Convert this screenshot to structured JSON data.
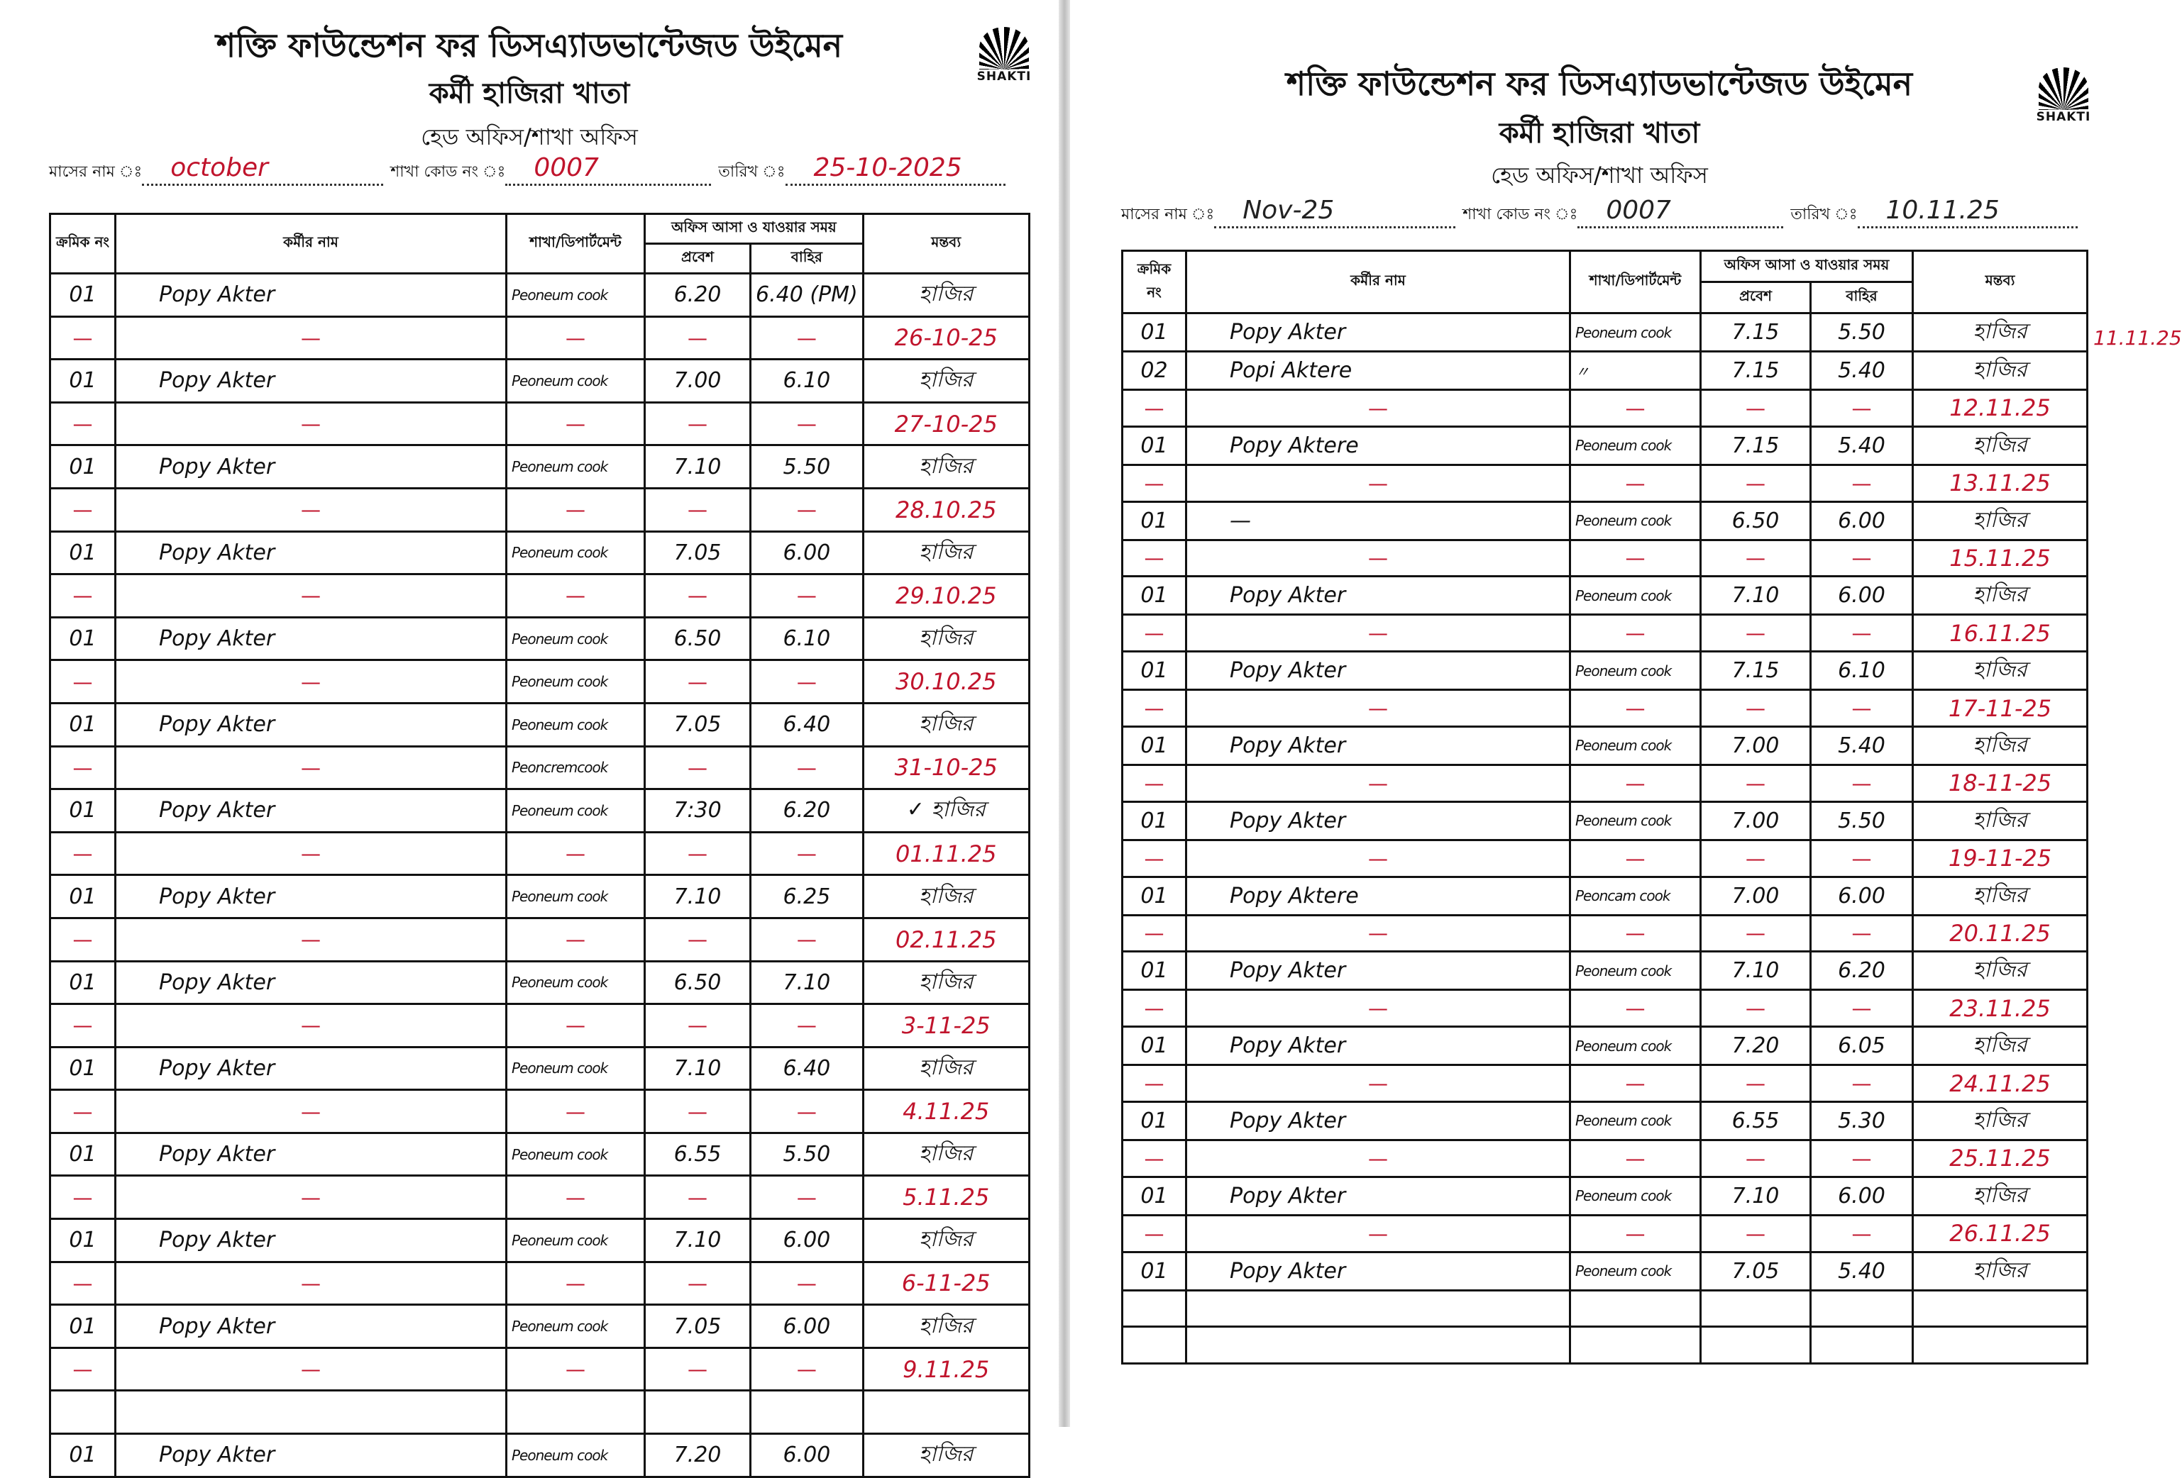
{
  "header": {
    "org_title": "শক্তি ফাউন্ডেশন ফর ডিসএ্যাডভান্টেজড উইমেন",
    "register_title": "কর্মী হাজিরা খাতা",
    "office_line": "হেড অফিস/শাখা অফিস",
    "logo_text": "SHAKTI",
    "month_label": "মাসের নাম ঃ",
    "branch_label": "শাখা কোড নং ঃ",
    "date_label": "তারিখ ঃ"
  },
  "columns": {
    "serial": "ক্রমিক নং",
    "name": "কর্মীর নাম",
    "dept": "শাখা/ডিপার্টমেন্ট",
    "time_group": "অফিস আসা ও যাওয়ার সময়",
    "entry": "প্রবেশ",
    "exit": "বাহির",
    "remarks": "মন্তব্য"
  },
  "colors": {
    "ink": "#111111",
    "red_ink": "#c0142c"
  },
  "sheets": [
    {
      "month": "october",
      "branch_code": "0007",
      "date": "25-10-2025",
      "rows": [
        {
          "type": "entry",
          "serial": "01",
          "name": "Popy Akter",
          "dept": "Peoneum cook",
          "in": "6.20",
          "out": "6.40 (PM)",
          "remark": "হাজির"
        },
        {
          "type": "dash",
          "date": "26-10-25"
        },
        {
          "type": "entry",
          "serial": "01",
          "name": "Popy Akter",
          "dept": "Peoneum cook",
          "in": "7.00",
          "out": "6.10",
          "remark": "হাজির"
        },
        {
          "type": "dash",
          "date": "27-10-25"
        },
        {
          "type": "entry",
          "serial": "01",
          "name": "Popy Akter",
          "dept": "Peoneum cook",
          "in": "7.10",
          "out": "5.50",
          "remark": "হাজির"
        },
        {
          "type": "dash",
          "date": "28.10.25"
        },
        {
          "type": "entry",
          "serial": "01",
          "name": "Popy Akter",
          "dept": "Peoneum cook",
          "in": "7.05",
          "out": "6.00",
          "remark": "হাজির"
        },
        {
          "type": "dash",
          "date": "29.10.25"
        },
        {
          "type": "entry",
          "serial": "01",
          "name": "Popy Akter",
          "dept": "Peoneum cook",
          "in": "6.50",
          "out": "6.10",
          "remark": "হাজির"
        },
        {
          "type": "dash",
          "date": "30.10.25",
          "dept": "Peoneum cook"
        },
        {
          "type": "entry",
          "serial": "01",
          "name": "Popy Akter",
          "dept": "Peoneum cook",
          "in": "7.05",
          "out": "6.40",
          "remark": "হাজির"
        },
        {
          "type": "dash",
          "date": "31-10-25",
          "dept": "Peoncremcook"
        },
        {
          "type": "entry",
          "serial": "01",
          "name": "Popy Akter",
          "dept": "Peoneum cook",
          "in": "7:30",
          "out": "6.20",
          "remark": "✓ হাজির"
        },
        {
          "type": "dash",
          "date": "01.11.25"
        },
        {
          "type": "entry",
          "serial": "01",
          "name": "Popy Akter",
          "dept": "Peoneum cook",
          "in": "7.10",
          "out": "6.25",
          "remark": "হাজির"
        },
        {
          "type": "dash",
          "date": "02.11.25"
        },
        {
          "type": "entry",
          "serial": "01",
          "name": "Popy Akter",
          "dept": "Peoneum cook",
          "in": "6.50",
          "out": "7.10",
          "remark": "হাজির"
        },
        {
          "type": "dash",
          "date": "3-11-25"
        },
        {
          "type": "entry",
          "serial": "01",
          "name": "Popy Akter",
          "dept": "Peoneum cook",
          "in": "7.10",
          "out": "6.40",
          "remark": "হাজির"
        },
        {
          "type": "dash",
          "date": "4.11.25"
        },
        {
          "type": "entry",
          "serial": "01",
          "name": "Popy Akter",
          "dept": "Peoneum cook",
          "in": "6.55",
          "out": "5.50",
          "remark": "হাজির"
        },
        {
          "type": "dash",
          "date": "5.11.25"
        },
        {
          "type": "entry",
          "serial": "01",
          "name": "Popy Akter",
          "dept": "Peoneum cook",
          "in": "7.10",
          "out": "6.00",
          "remark": "হাজির"
        },
        {
          "type": "dash",
          "date": "6-11-25"
        },
        {
          "type": "entry",
          "serial": "01",
          "name": "Popy Akter",
          "dept": "Peoneum cook",
          "in": "7.05",
          "out": "6.00",
          "remark": "হাজির"
        },
        {
          "type": "dash",
          "date": "9.11.25"
        },
        {
          "type": "empty"
        },
        {
          "type": "entry",
          "serial": "01",
          "name": "Popy Akter",
          "dept": "Peoneum cook",
          "in": "7.20",
          "out": "6.00",
          "remark": "হাজির"
        }
      ]
    },
    {
      "month": "Nov-25",
      "branch_code": "0007",
      "date": "10.11.25",
      "margin_note": "11.11.25",
      "rows": [
        {
          "type": "entry",
          "serial": "01",
          "name": "Popy Akter",
          "dept": "Peoneum cook",
          "in": "7.15",
          "out": "5.50",
          "remark": "হাজির"
        },
        {
          "type": "entry",
          "serial": "02",
          "name": "Popi Aktere",
          "dept": "〃",
          "in": "7.15",
          "out": "5.40",
          "remark": "হাজির"
        },
        {
          "type": "dash",
          "date": "12.11.25"
        },
        {
          "type": "entry",
          "serial": "01",
          "name": "Popy Aktere",
          "dept": "Peoneum cook",
          "in": "7.15",
          "out": "5.40",
          "remark": "হাজির"
        },
        {
          "type": "dash",
          "date": "13.11.25"
        },
        {
          "type": "entry",
          "serial": "01",
          "name": "—",
          "dept": "Peoneum cook",
          "in": "6.50",
          "out": "6.00",
          "remark": "হাজির"
        },
        {
          "type": "dash",
          "date": "15.11.25"
        },
        {
          "type": "entry",
          "serial": "01",
          "name": "Popy Akter",
          "dept": "Peoneum cook",
          "in": "7.10",
          "out": "6.00",
          "remark": "হাজির"
        },
        {
          "type": "dash",
          "date": "16.11.25"
        },
        {
          "type": "entry",
          "serial": "01",
          "name": "Popy Akter",
          "dept": "Peoneum cook",
          "in": "7.15",
          "out": "6.10",
          "remark": "হাজির"
        },
        {
          "type": "dash",
          "date": "17-11-25"
        },
        {
          "type": "entry",
          "serial": "01",
          "name": "Popy Akter",
          "dept": "Peoneum cook",
          "in": "7.00",
          "out": "5.40",
          "remark": "হাজির"
        },
        {
          "type": "dash",
          "date": "18-11-25"
        },
        {
          "type": "entry",
          "serial": "01",
          "name": "Popy Akter",
          "dept": "Peoneum cook",
          "in": "7.00",
          "out": "5.50",
          "remark": "হাজির"
        },
        {
          "type": "dash",
          "date": "19-11-25"
        },
        {
          "type": "entry",
          "serial": "01",
          "name": "Popy Aktere",
          "dept": "Peoncam cook",
          "in": "7.00",
          "out": "6.00",
          "remark": "হাজির"
        },
        {
          "type": "dash",
          "date": "20.11.25"
        },
        {
          "type": "entry",
          "serial": "01",
          "name": "Popy Akter",
          "dept": "Peoneum cook",
          "in": "7.10",
          "out": "6.20",
          "remark": "হাজির"
        },
        {
          "type": "dash",
          "date": "23.11.25"
        },
        {
          "type": "entry",
          "serial": "01",
          "name": "Popy Akter",
          "dept": "Peoneum cook",
          "in": "7.20",
          "out": "6.05",
          "remark": "হাজির"
        },
        {
          "type": "dash",
          "date": "24.11.25"
        },
        {
          "type": "entry",
          "serial": "01",
          "name": "Popy Akter",
          "dept": "Peoneum cook",
          "in": "6.55",
          "out": "5.30",
          "remark": "হাজির"
        },
        {
          "type": "dash",
          "date": "25.11.25"
        },
        {
          "type": "entry",
          "serial": "01",
          "name": "Popy Akter",
          "dept": "Peoneum cook",
          "in": "7.10",
          "out": "6.00",
          "remark": "হাজির"
        },
        {
          "type": "dash",
          "date": "26.11.25"
        },
        {
          "type": "entry",
          "serial": "01",
          "name": "Popy Akter",
          "dept": "Peoneum cook",
          "in": "7.05",
          "out": "5.40",
          "remark": "হাজির"
        },
        {
          "type": "empty"
        },
        {
          "type": "empty"
        }
      ]
    }
  ]
}
